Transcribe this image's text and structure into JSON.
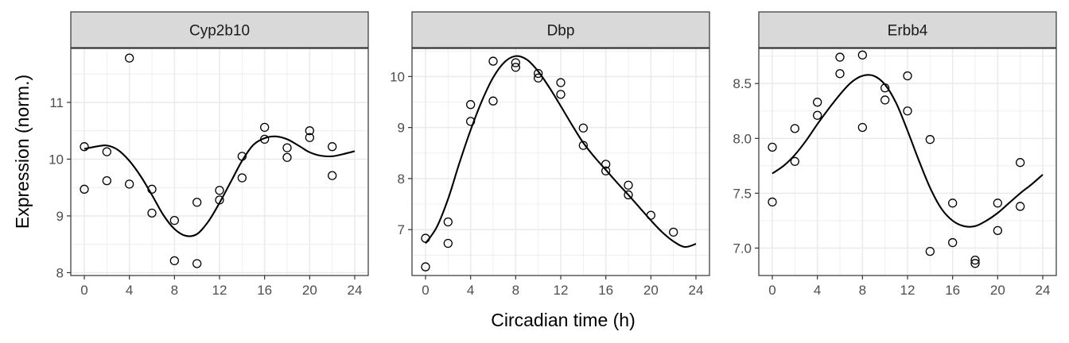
{
  "chart_data": {
    "type": "scatter",
    "layout": "facets",
    "xlabel": "Circadian time (h)",
    "ylabel": "Expression (norm.)",
    "x_ticks": [
      0,
      4,
      8,
      12,
      16,
      20,
      24
    ],
    "xlim": [
      -1.2,
      25.2
    ],
    "grid": true,
    "colors": {
      "points": "#000000",
      "curve": "#000000",
      "strip_fill": "#d9d9d9",
      "panel_border": "#333333",
      "grid": "#ebebeb"
    },
    "panels": [
      {
        "name": "Cyp2b10",
        "ylim": [
          7.95,
          11.95
        ],
        "y_ticks": [
          8,
          9,
          10,
          11
        ],
        "points": [
          [
            0,
            10.22
          ],
          [
            0,
            9.47
          ],
          [
            2,
            10.13
          ],
          [
            2,
            9.62
          ],
          [
            4,
            11.78
          ],
          [
            4,
            9.56
          ],
          [
            6,
            9.47
          ],
          [
            6,
            9.05
          ],
          [
            8,
            8.92
          ],
          [
            8,
            8.21
          ],
          [
            10,
            9.24
          ],
          [
            10,
            8.16
          ],
          [
            12,
            9.45
          ],
          [
            12,
            9.28
          ],
          [
            14,
            10.05
          ],
          [
            14,
            9.67
          ],
          [
            16,
            10.56
          ],
          [
            16,
            10.35
          ],
          [
            18,
            10.2
          ],
          [
            18,
            10.03
          ],
          [
            20,
            10.5
          ],
          [
            20,
            10.38
          ],
          [
            22,
            10.22
          ],
          [
            22,
            9.71
          ]
        ],
        "curve": [
          [
            0,
            10.18
          ],
          [
            1,
            10.22
          ],
          [
            2,
            10.24
          ],
          [
            3,
            10.16
          ],
          [
            4,
            9.97
          ],
          [
            5,
            9.7
          ],
          [
            6,
            9.37
          ],
          [
            7,
            9.02
          ],
          [
            8,
            8.77
          ],
          [
            9,
            8.65
          ],
          [
            10,
            8.68
          ],
          [
            11,
            8.9
          ],
          [
            12,
            9.23
          ],
          [
            13,
            9.6
          ],
          [
            14,
            9.97
          ],
          [
            15,
            10.25
          ],
          [
            16,
            10.37
          ],
          [
            17,
            10.4
          ],
          [
            18,
            10.35
          ],
          [
            19,
            10.24
          ],
          [
            20,
            10.12
          ],
          [
            21,
            10.06
          ],
          [
            22,
            10.05
          ],
          [
            23,
            10.09
          ],
          [
            24,
            10.14
          ]
        ]
      },
      {
        "name": "Dbp",
        "ylim": [
          6.1,
          10.55
        ],
        "y_ticks": [
          7,
          8,
          9,
          10
        ],
        "points": [
          [
            0,
            6.83
          ],
          [
            0,
            6.27
          ],
          [
            2,
            7.15
          ],
          [
            2,
            6.73
          ],
          [
            4,
            9.45
          ],
          [
            4,
            9.12
          ],
          [
            6,
            10.3
          ],
          [
            6,
            9.52
          ],
          [
            8,
            10.27
          ],
          [
            8,
            10.18
          ],
          [
            10,
            10.06
          ],
          [
            10,
            9.97
          ],
          [
            12,
            9.88
          ],
          [
            12,
            9.65
          ],
          [
            14,
            8.99
          ],
          [
            14,
            8.65
          ],
          [
            16,
            8.28
          ],
          [
            16,
            8.15
          ],
          [
            18,
            7.87
          ],
          [
            18,
            7.68
          ],
          [
            20,
            7.28
          ],
          [
            22,
            6.95
          ]
        ],
        "curve": [
          [
            0,
            6.73
          ],
          [
            1,
            7.05
          ],
          [
            2,
            7.6
          ],
          [
            3,
            8.3
          ],
          [
            4,
            8.95
          ],
          [
            5,
            9.52
          ],
          [
            6,
            9.98
          ],
          [
            7,
            10.28
          ],
          [
            8,
            10.4
          ],
          [
            9,
            10.33
          ],
          [
            10,
            10.1
          ],
          [
            11,
            9.78
          ],
          [
            12,
            9.42
          ],
          [
            13,
            9.05
          ],
          [
            14,
            8.7
          ],
          [
            15,
            8.42
          ],
          [
            16,
            8.17
          ],
          [
            17,
            7.92
          ],
          [
            18,
            7.68
          ],
          [
            19,
            7.43
          ],
          [
            20,
            7.18
          ],
          [
            21,
            6.95
          ],
          [
            22,
            6.77
          ],
          [
            23,
            6.66
          ],
          [
            24,
            6.72
          ]
        ]
      },
      {
        "name": "Erbb4",
        "ylim": [
          6.75,
          8.82
        ],
        "y_ticks": [
          7.0,
          7.5,
          8.0,
          8.5
        ],
        "y_tick_labels": [
          "7.0",
          "7.5",
          "8.0",
          "8.5"
        ],
        "points": [
          [
            0,
            7.92
          ],
          [
            0,
            7.42
          ],
          [
            2,
            8.09
          ],
          [
            2,
            7.79
          ],
          [
            4,
            8.33
          ],
          [
            4,
            8.21
          ],
          [
            6,
            8.74
          ],
          [
            6,
            8.59
          ],
          [
            8,
            8.76
          ],
          [
            8,
            8.1
          ],
          [
            10,
            8.46
          ],
          [
            10,
            8.35
          ],
          [
            12,
            8.57
          ],
          [
            12,
            8.25
          ],
          [
            14,
            7.99
          ],
          [
            14,
            6.97
          ],
          [
            16,
            7.41
          ],
          [
            16,
            7.05
          ],
          [
            18,
            6.89
          ],
          [
            18,
            6.86
          ],
          [
            20,
            7.41
          ],
          [
            20,
            7.16
          ],
          [
            22,
            7.78
          ],
          [
            22,
            7.38
          ]
        ],
        "curve": [
          [
            0,
            7.68
          ],
          [
            1,
            7.75
          ],
          [
            2,
            7.85
          ],
          [
            3,
            7.98
          ],
          [
            4,
            8.13
          ],
          [
            5,
            8.27
          ],
          [
            6,
            8.4
          ],
          [
            7,
            8.51
          ],
          [
            8,
            8.57
          ],
          [
            9,
            8.57
          ],
          [
            10,
            8.49
          ],
          [
            11,
            8.32
          ],
          [
            12,
            8.07
          ],
          [
            13,
            7.8
          ],
          [
            14,
            7.55
          ],
          [
            15,
            7.36
          ],
          [
            16,
            7.25
          ],
          [
            17,
            7.2
          ],
          [
            18,
            7.2
          ],
          [
            19,
            7.25
          ],
          [
            20,
            7.32
          ],
          [
            21,
            7.41
          ],
          [
            22,
            7.5
          ],
          [
            23,
            7.58
          ],
          [
            24,
            7.67
          ]
        ]
      }
    ]
  }
}
